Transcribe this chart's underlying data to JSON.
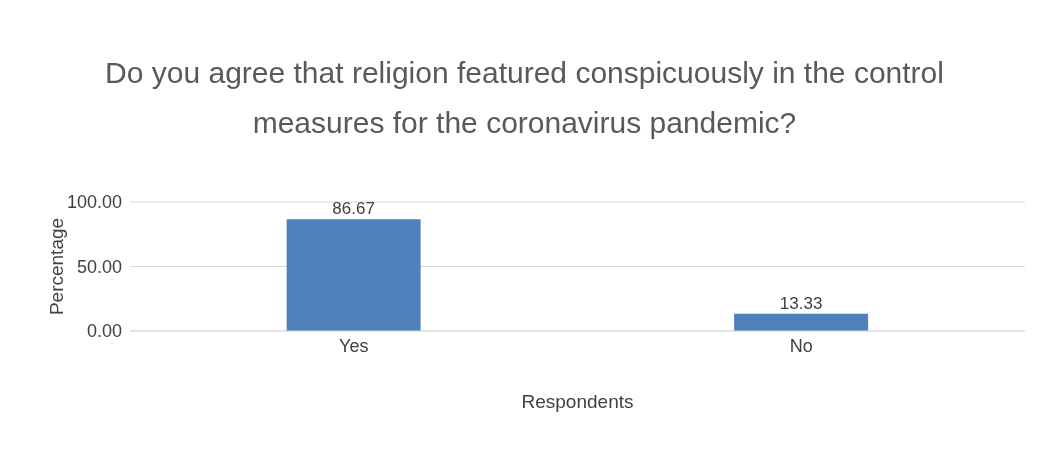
{
  "chart_data": {
    "type": "bar",
    "title": "Do you agree that religion featured conspicuously in the control measures for the coronavirus pandemic?",
    "xlabel": "Respondents",
    "ylabel": "Percentage",
    "categories": [
      "Yes",
      "No"
    ],
    "values": [
      86.67,
      13.33
    ],
    "color": "#4f81bd",
    "ylim": [
      0,
      100
    ],
    "yticks": [
      {
        "value": 0,
        "label": "0.00"
      },
      {
        "value": 50,
        "label": "50.00"
      },
      {
        "value": 100,
        "label": "100.00"
      }
    ],
    "grid": "y",
    "data_labels": true,
    "legend": false
  }
}
